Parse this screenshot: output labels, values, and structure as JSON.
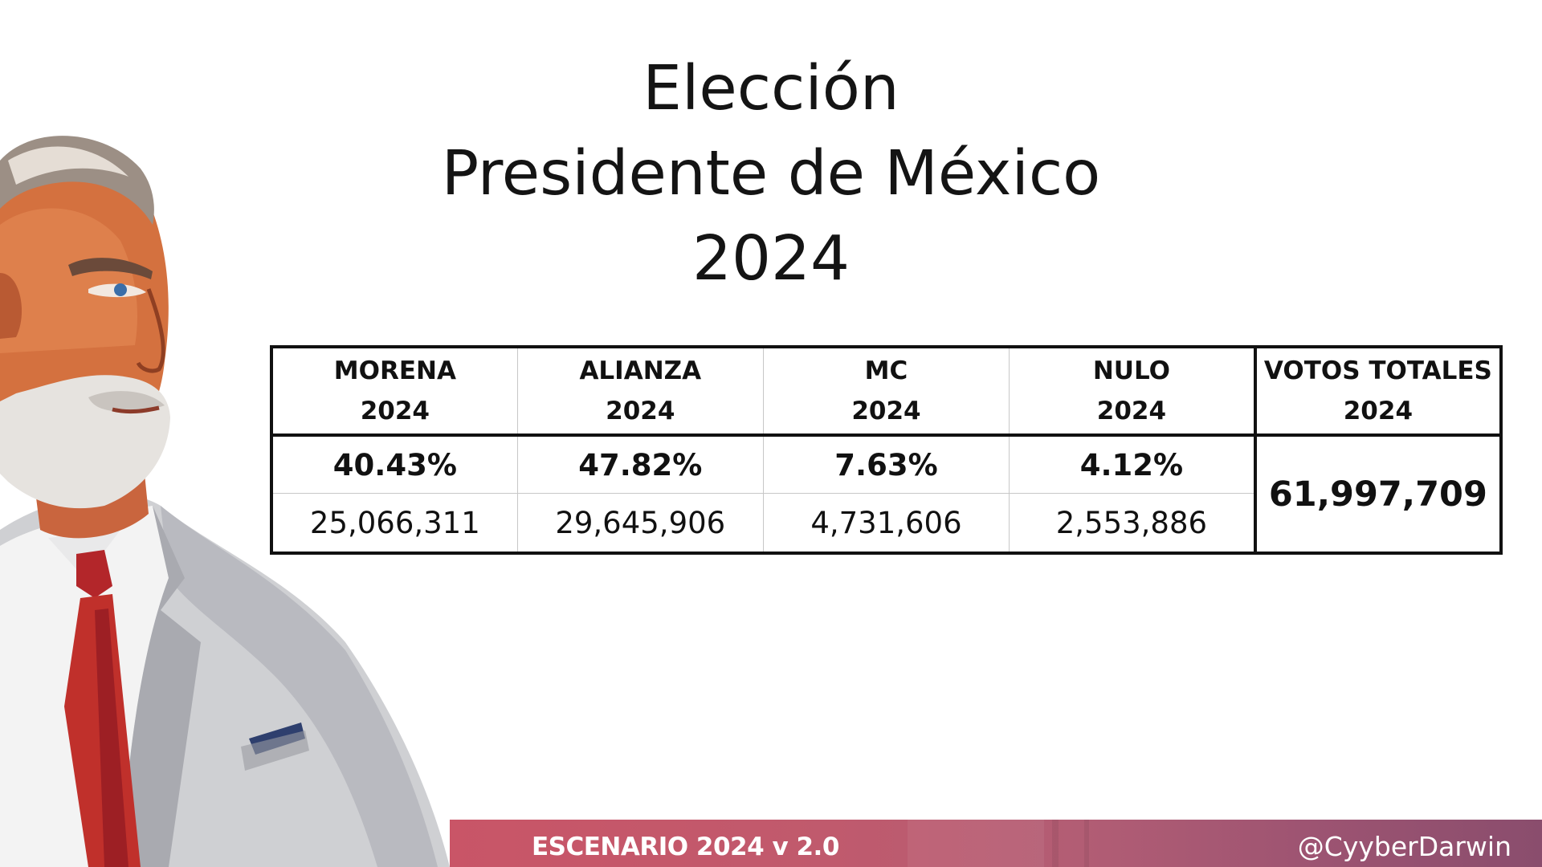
{
  "title": {
    "line1": "Elección",
    "line2": "Presidente de México",
    "line3": "2024"
  },
  "table": {
    "columns": [
      {
        "name": "MORENA",
        "year": "2024",
        "percent": "40.43%",
        "votes": "25,066,311"
      },
      {
        "name": "ALIANZA",
        "year": "2024",
        "percent": "47.82%",
        "votes": "29,645,906"
      },
      {
        "name": "MC",
        "year": "2024",
        "percent": "7.63%",
        "votes": "4,731,606"
      },
      {
        "name": "NULO",
        "year": "2024",
        "percent": "4.12%",
        "votes": "2,553,886"
      }
    ],
    "total": {
      "name": "VOTOS TOTALES",
      "year": "2024",
      "value": "61,997,709"
    }
  },
  "footer": {
    "label": "ESCENARIO 2024 v 2.0",
    "handle": "@CyyberDarwin"
  },
  "colors": {
    "footer_start": "#c95567",
    "footer_end": "#8a4d6d",
    "tie": "#c0302b",
    "suit": "#d3d3d6"
  }
}
